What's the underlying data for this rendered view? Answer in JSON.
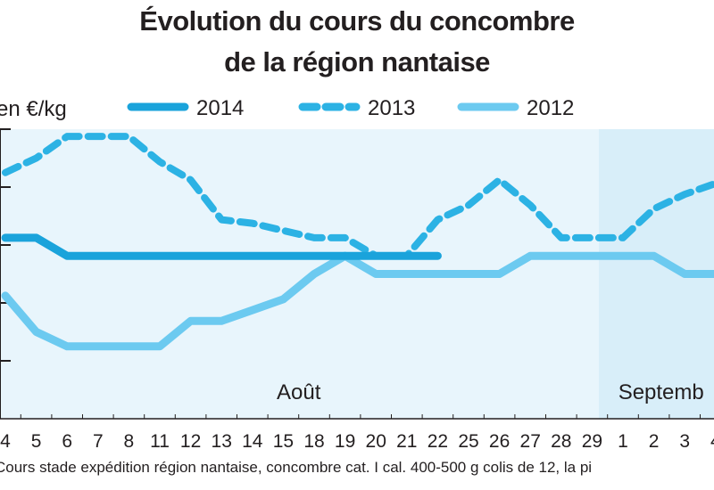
{
  "title": {
    "line1": "Évolution du cours du concombre",
    "line2": "de la région nantaise"
  },
  "footnote": "Cours stade expédition région nantaise, concombre cat. I cal. 400-500 g colis de 12, la pi",
  "colors": {
    "s2014": "#1aa3db",
    "s2013": "#2cb2e4",
    "s2012": "#6ccaf0",
    "plot_bg_aout": "#e8f5fc",
    "plot_bg_sept": "#d8eef9"
  },
  "chart_data": {
    "type": "line",
    "ylabel": "en €/kg",
    "x_categories": [
      "4",
      "5",
      "6",
      "7",
      "8",
      "11",
      "12",
      "13",
      "14",
      "15",
      "18",
      "19",
      "20",
      "21",
      "22",
      "25",
      "26",
      "27",
      "28",
      "29",
      "1",
      "2",
      "3",
      "4"
    ],
    "month_labels": [
      {
        "label": "Août",
        "start_index": 0,
        "end_index": 19
      },
      {
        "label": "Septemb",
        "start_index": 20,
        "end_index": 23
      }
    ],
    "legend_placement": "top",
    "grid": false,
    "y_ticks": 5,
    "series": [
      {
        "name": "2014",
        "style": "solid-dark",
        "values": [
          3.5,
          3.5,
          3.25,
          3.25,
          3.25,
          3.25,
          3.25,
          3.25,
          3.25,
          3.25,
          3.25,
          3.25,
          3.25,
          3.25,
          3.25,
          null,
          null,
          null,
          null,
          null,
          null,
          null,
          null,
          null
        ]
      },
      {
        "name": "2013",
        "style": "dashed",
        "values": [
          4.4,
          4.6,
          4.9,
          4.9,
          4.9,
          4.55,
          4.3,
          3.75,
          3.7,
          3.6,
          3.5,
          3.5,
          3.25,
          3.25,
          3.75,
          3.95,
          4.3,
          3.95,
          3.5,
          3.5,
          3.5,
          3.9,
          4.1,
          4.25
        ]
      },
      {
        "name": "2012",
        "style": "solid-light",
        "values": [
          2.7,
          2.2,
          2.0,
          2.0,
          2.0,
          2.0,
          2.35,
          2.35,
          2.5,
          2.65,
          3.0,
          3.25,
          3.0,
          3.0,
          3.0,
          3.0,
          3.0,
          3.25,
          3.25,
          3.25,
          3.25,
          3.25,
          3.0,
          3.0
        ]
      }
    ]
  }
}
